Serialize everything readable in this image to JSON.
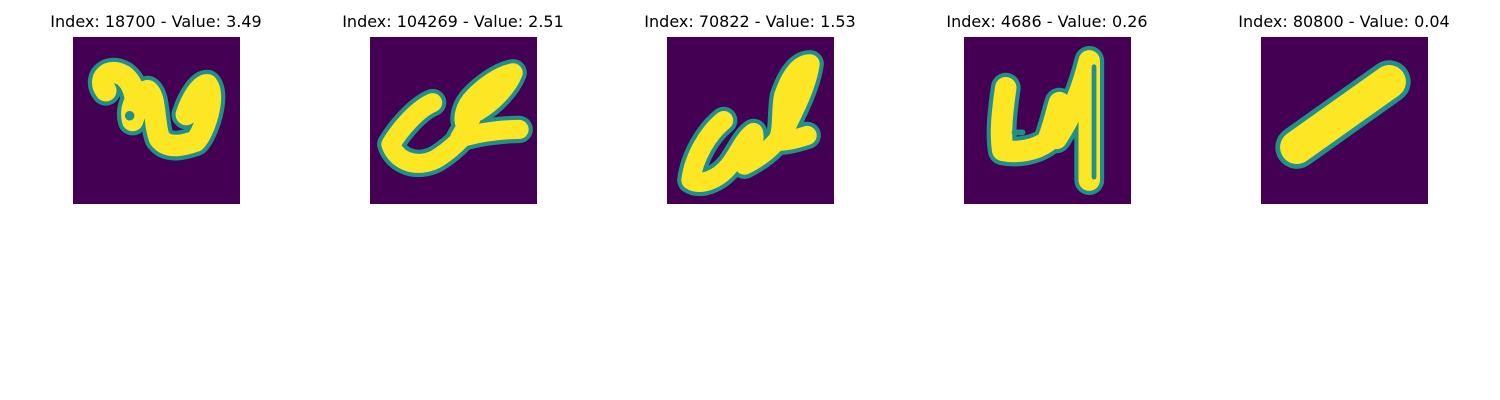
{
  "colors": {
    "background": "#440154",
    "stroke": "#fde725",
    "edge": "#21908d"
  },
  "panels": [
    {
      "title": "Index: 18700 - Value: 3.49",
      "index": 18700,
      "value": 3.49
    },
    {
      "title": "Index: 104269 - Value: 2.51",
      "index": 104269,
      "value": 2.51
    },
    {
      "title": "Index: 70822 - Value: 1.53",
      "index": 70822,
      "value": 1.53
    },
    {
      "title": "Index: 4686 - Value: 0.26",
      "index": 4686,
      "value": 0.26
    },
    {
      "title": "Index: 80800 - Value: 0.04",
      "index": 80800,
      "value": 0.04
    }
  ]
}
